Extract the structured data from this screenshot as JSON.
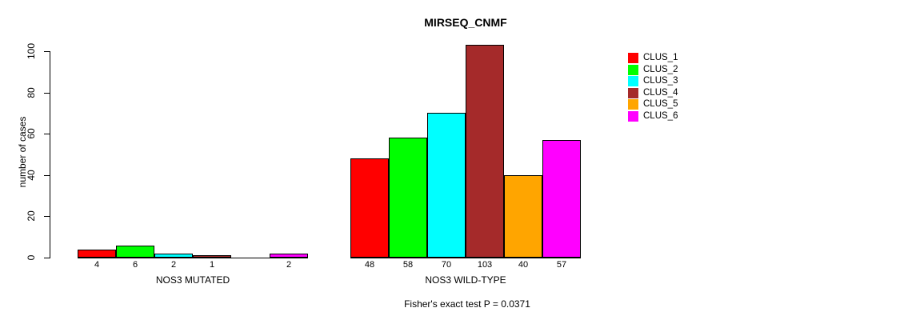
{
  "chart_data": {
    "type": "bar",
    "title": "MIRSEQ_CNMF",
    "ylabel": "number of cases",
    "xlabel": "",
    "annotation": "Fisher's exact test P = 0.0371",
    "categories": [
      "NOS3 MUTATED",
      "NOS3 WILD-TYPE"
    ],
    "series": [
      {
        "name": "CLUS_1",
        "color": "#ff0000",
        "values": [
          4,
          48
        ]
      },
      {
        "name": "CLUS_2",
        "color": "#00ff00",
        "values": [
          6,
          58
        ]
      },
      {
        "name": "CLUS_3",
        "color": "#00ffff",
        "values": [
          2,
          70
        ]
      },
      {
        "name": "CLUS_4",
        "color": "#a52a2a",
        "values": [
          1,
          103
        ]
      },
      {
        "name": "CLUS_5",
        "color": "#ffa500",
        "values": [
          0,
          40
        ]
      },
      {
        "name": "CLUS_6",
        "color": "#ff00ff",
        "values": [
          2,
          57
        ]
      }
    ],
    "yticks": [
      0,
      20,
      40,
      60,
      80,
      100
    ],
    "ylim": [
      0,
      100
    ],
    "grid": false,
    "bar_value_labels": true,
    "zero_values_unlabeled": true,
    "legend_position": "right"
  }
}
